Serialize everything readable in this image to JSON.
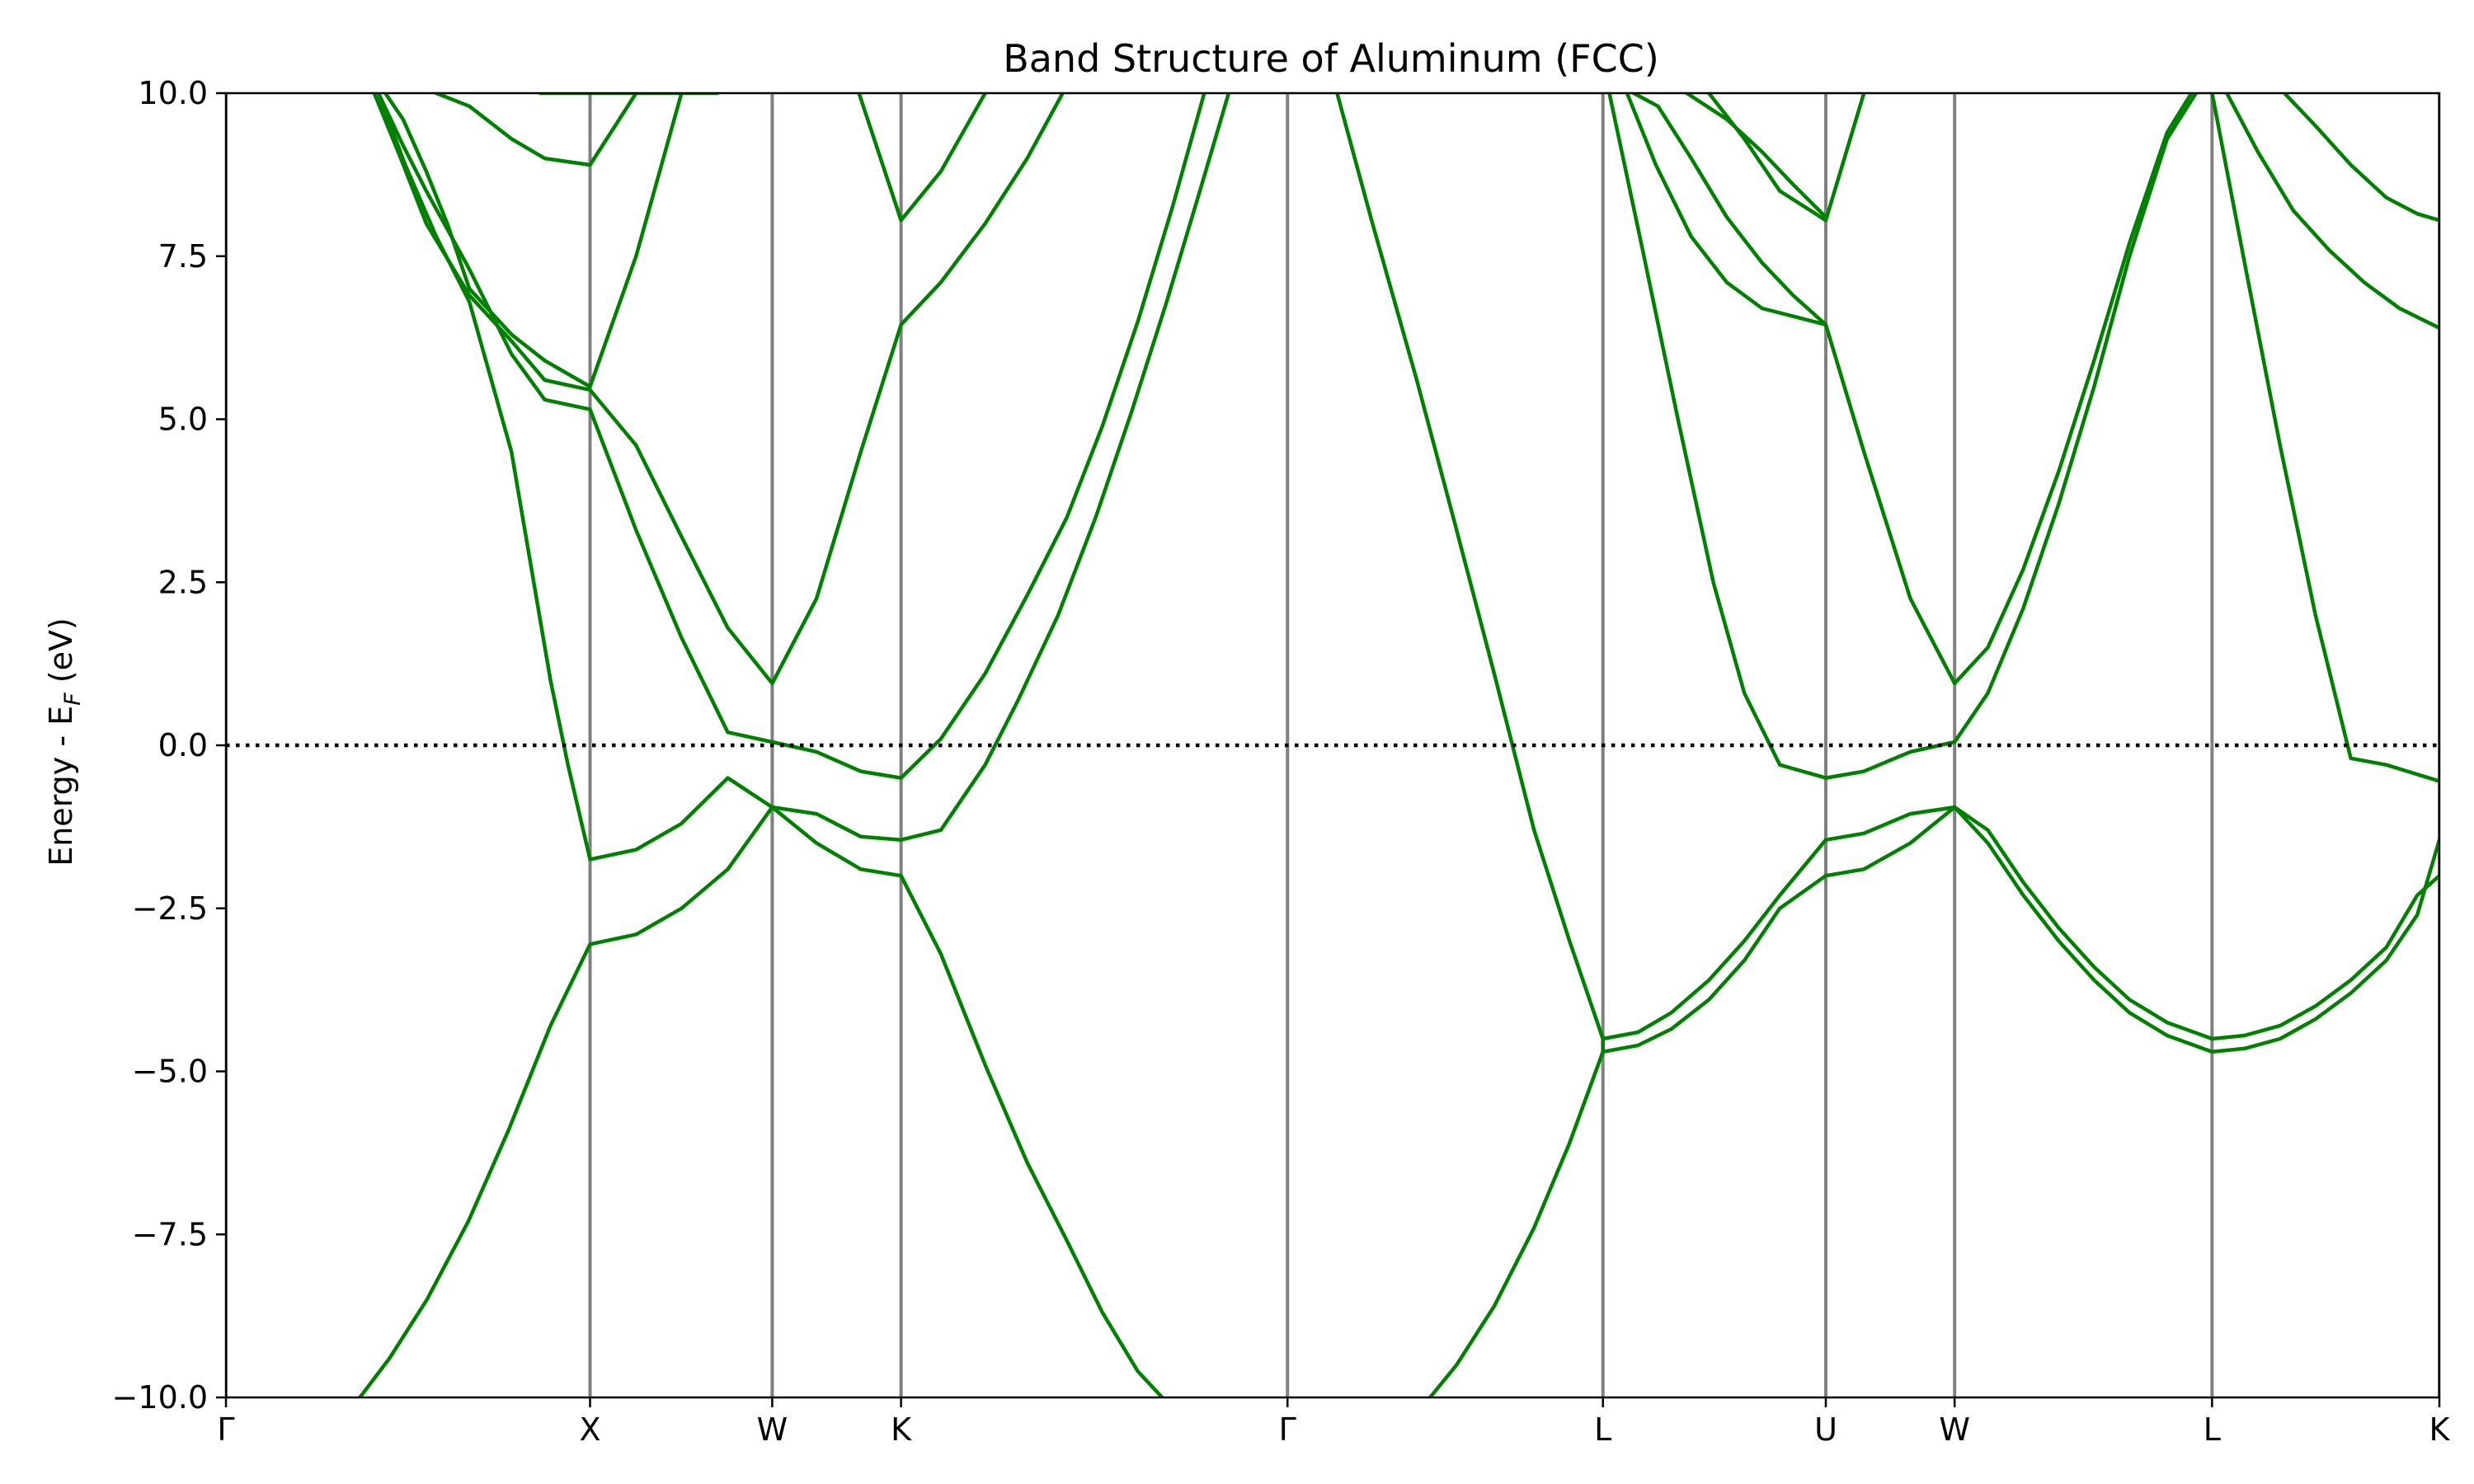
{
  "chart_data": {
    "type": "line",
    "title": "Band Structure of Aluminum (FCC)",
    "xlabel": "",
    "ylabel": "Energy - E_F (eV)",
    "ylabel_main": "Energy - E",
    "ylabel_sub": "F",
    "ylabel_tail": " (eV)",
    "ylim": [
      -10,
      10
    ],
    "xlim": [
      0,
      1
    ],
    "y_ticks": [
      -10,
      -7.5,
      -5,
      -2.5,
      0,
      2.5,
      5,
      7.5,
      10
    ],
    "y_tick_labels": [
      "−10.0",
      "−7.5",
      "−5.0",
      "−2.5",
      "0.0",
      "2.5",
      "5.0",
      "7.5",
      "10.0"
    ],
    "high_symmetry_points": [
      {
        "label": "Γ",
        "x": 0.0
      },
      {
        "label": "X",
        "x": 0.1645
      },
      {
        "label": "W",
        "x": 0.2468
      },
      {
        "label": "K",
        "x": 0.305
      },
      {
        "label": "Γ",
        "x": 0.4796
      },
      {
        "label": "L",
        "x": 0.6221
      },
      {
        "label": "U",
        "x": 0.7228
      },
      {
        "label": "W",
        "x": 0.781
      },
      {
        "label": "L",
        "x": 0.8973
      },
      {
        "label": "K",
        "x": 1.0
      }
    ],
    "fermi_level": 0.0,
    "grid": false,
    "line_color": "#008000",
    "symmetry_line_color": "#808080",
    "series": [
      {
        "points": [
          [
            0.0605,
            -10
          ],
          [
            0.0739,
            -9.4
          ],
          [
            0.0908,
            -8.5
          ],
          [
            0.1095,
            -7.3
          ],
          [
            0.1277,
            -5.9
          ],
          [
            0.1466,
            -4.3
          ],
          [
            0.1645,
            -3.05
          ],
          [
            0.1853,
            -2.9
          ],
          [
            0.2058,
            -2.5
          ],
          [
            0.2267,
            -1.9
          ],
          [
            0.2468,
            -0.95
          ],
          [
            0.2668,
            -1.05
          ],
          [
            0.2868,
            -1.4
          ],
          [
            0.305,
            -1.45
          ],
          [
            0.323,
            -1.3
          ],
          [
            0.343,
            -0.3
          ],
          [
            0.358,
            0.7
          ],
          [
            0.376,
            2.0
          ],
          [
            0.393,
            3.5
          ],
          [
            0.409,
            5.1
          ],
          [
            0.425,
            6.8
          ],
          [
            0.44,
            8.5
          ],
          [
            0.453,
            10
          ]
        ]
      },
      {
        "points": [
          [
            0.142,
            10
          ],
          [
            0.1555,
            10
          ],
          [
            0.17,
            10
          ],
          [
            0.18,
            10
          ],
          [
            0.195,
            10
          ],
          [
            0.21,
            10
          ],
          [
            0.222,
            10
          ]
        ]
      },
      {
        "points": [
          [
            0.0689,
            10
          ],
          [
            0.08,
            9.2
          ],
          [
            0.0905,
            8.5
          ],
          [
            0.11,
            7.3
          ],
          [
            0.129,
            6.0
          ],
          [
            0.144,
            5.3
          ],
          [
            0.1645,
            5.15
          ],
          [
            0.1853,
            3.3
          ],
          [
            0.2058,
            1.65
          ],
          [
            0.2267,
            0.2
          ],
          [
            0.2468,
            0.05
          ],
          [
            0.2668,
            -0.1
          ],
          [
            0.2868,
            -0.4
          ],
          [
            0.305,
            -0.5
          ],
          [
            0.323,
            0.1
          ],
          [
            0.343,
            1.1
          ],
          [
            0.362,
            2.3
          ],
          [
            0.38,
            3.5
          ],
          [
            0.396,
            4.9
          ],
          [
            0.412,
            6.5
          ],
          [
            0.428,
            8.3
          ],
          [
            0.442,
            10
          ]
        ]
      },
      {
        "points": [
          [
            0.067,
            10
          ],
          [
            0.079,
            9.0
          ],
          [
            0.0905,
            8.0
          ],
          [
            0.11,
            6.9
          ],
          [
            0.129,
            6.2
          ],
          [
            0.144,
            5.6
          ],
          [
            0.1645,
            5.45
          ],
          [
            0.1853,
            4.6
          ],
          [
            0.2058,
            3.2
          ],
          [
            0.2267,
            1.8
          ],
          [
            0.2468,
            0.95
          ],
          [
            0.2668,
            2.25
          ],
          [
            0.2868,
            4.5
          ],
          [
            0.305,
            6.45
          ],
          [
            0.323,
            7.1
          ],
          [
            0.343,
            8.0
          ],
          [
            0.362,
            9.0
          ],
          [
            0.378,
            10
          ]
        ]
      },
      {
        "points": [
          [
            0.072,
            10
          ],
          [
            0.08,
            9.6
          ],
          [
            0.0905,
            8.8
          ],
          [
            0.1,
            8.0
          ],
          [
            0.11,
            7.0
          ],
          [
            0.129,
            6.3
          ],
          [
            0.144,
            5.9
          ],
          [
            0.1645,
            5.5
          ],
          [
            0.1853,
            7.5
          ],
          [
            0.2058,
            10
          ]
        ]
      },
      {
        "points": [
          [
            0.095,
            10
          ],
          [
            0.11,
            9.8
          ],
          [
            0.129,
            9.3
          ],
          [
            0.144,
            9.0
          ],
          [
            0.1645,
            8.9
          ],
          [
            0.1853,
            10
          ]
        ]
      },
      {
        "points": [
          [
            0.0689,
            10
          ],
          [
            0.081,
            8.9
          ],
          [
            0.095,
            7.8
          ],
          [
            0.11,
            6.8
          ],
          [
            0.129,
            4.5
          ],
          [
            0.1466,
            1.0
          ],
          [
            0.1545,
            -0.3
          ],
          [
            0.1645,
            -1.75
          ],
          [
            0.1853,
            -1.6
          ],
          [
            0.2058,
            -1.2
          ],
          [
            0.2267,
            -0.5
          ],
          [
            0.2468,
            -0.95
          ],
          [
            0.2668,
            -1.5
          ],
          [
            0.2868,
            -1.9
          ],
          [
            0.305,
            -2.0
          ],
          [
            0.323,
            -3.2
          ],
          [
            0.343,
            -4.9
          ],
          [
            0.362,
            -6.4
          ],
          [
            0.38,
            -7.6
          ],
          [
            0.396,
            -8.7
          ],
          [
            0.412,
            -9.6
          ],
          [
            0.423,
            -10
          ]
        ]
      },
      {
        "points": [
          [
            0.286,
            10
          ],
          [
            0.305,
            8.05
          ],
          [
            0.323,
            8.8
          ],
          [
            0.343,
            10
          ]
        ]
      },
      {
        "points": [
          [
            0.502,
            10
          ],
          [
            0.518,
            8.0
          ],
          [
            0.538,
            5.6
          ],
          [
            0.556,
            3.3
          ],
          [
            0.573,
            1.1
          ],
          [
            0.591,
            -1.3
          ],
          [
            0.607,
            -3.0
          ],
          [
            0.6221,
            -4.5
          ],
          [
            0.6221,
            -4.7
          ],
          [
            0.607,
            -6.1
          ],
          [
            0.591,
            -7.4
          ],
          [
            0.573,
            -8.6
          ],
          [
            0.556,
            -9.5
          ],
          [
            0.544,
            -10
          ]
        ]
      },
      {
        "points": [
          [
            0.6221,
            -4.5
          ],
          [
            0.638,
            -4.4
          ],
          [
            0.653,
            -4.1
          ],
          [
            0.67,
            -3.6
          ],
          [
            0.686,
            -3.0
          ],
          [
            0.702,
            -2.3
          ],
          [
            0.7228,
            -1.45
          ],
          [
            0.74,
            -1.35
          ],
          [
            0.761,
            -1.05
          ],
          [
            0.781,
            -0.95
          ],
          [
            0.796,
            -1.3
          ],
          [
            0.812,
            -2.1
          ],
          [
            0.828,
            -2.8
          ],
          [
            0.844,
            -3.4
          ],
          [
            0.86,
            -3.9
          ],
          [
            0.877,
            -4.25
          ],
          [
            0.8973,
            -4.5
          ],
          [
            0.912,
            -4.45
          ],
          [
            0.928,
            -4.3
          ],
          [
            0.944,
            -4.0
          ],
          [
            0.96,
            -3.6
          ],
          [
            0.976,
            -3.1
          ],
          [
            0.99,
            -2.3
          ],
          [
            1.0,
            -2.0
          ]
        ]
      },
      {
        "points": [
          [
            0.6221,
            -4.7
          ],
          [
            0.638,
            -4.6
          ],
          [
            0.653,
            -4.35
          ],
          [
            0.67,
            -3.9
          ],
          [
            0.686,
            -3.3
          ],
          [
            0.702,
            -2.5
          ],
          [
            0.7228,
            -2.0
          ],
          [
            0.74,
            -1.9
          ],
          [
            0.761,
            -1.5
          ],
          [
            0.781,
            -0.95
          ],
          [
            0.796,
            -1.5
          ],
          [
            0.812,
            -2.3
          ],
          [
            0.828,
            -3.0
          ],
          [
            0.844,
            -3.6
          ],
          [
            0.86,
            -4.1
          ],
          [
            0.877,
            -4.45
          ],
          [
            0.8973,
            -4.7
          ],
          [
            0.912,
            -4.65
          ],
          [
            0.928,
            -4.5
          ],
          [
            0.944,
            -4.2
          ],
          [
            0.96,
            -3.8
          ],
          [
            0.976,
            -3.3
          ],
          [
            0.99,
            -2.6
          ],
          [
            1.0,
            -1.45
          ]
        ]
      },
      {
        "points": [
          [
            0.625,
            10
          ],
          [
            0.64,
            7.6
          ],
          [
            0.656,
            5.0
          ],
          [
            0.672,
            2.5
          ],
          [
            0.686,
            0.8
          ],
          [
            0.702,
            -0.3
          ],
          [
            0.7228,
            -0.5
          ],
          [
            0.74,
            -0.4
          ],
          [
            0.761,
            -0.1
          ],
          [
            0.781,
            0.05
          ],
          [
            0.796,
            0.8
          ],
          [
            0.812,
            2.1
          ],
          [
            0.828,
            3.7
          ],
          [
            0.844,
            5.5
          ],
          [
            0.86,
            7.5
          ],
          [
            0.877,
            9.3
          ],
          [
            0.89,
            10
          ]
        ]
      },
      {
        "points": [
          [
            0.633,
            10
          ],
          [
            0.646,
            8.9
          ],
          [
            0.662,
            7.8
          ],
          [
            0.678,
            7.1
          ],
          [
            0.694,
            6.7
          ],
          [
            0.7228,
            6.45
          ],
          [
            0.74,
            4.5
          ],
          [
            0.761,
            2.25
          ],
          [
            0.781,
            0.95
          ],
          [
            0.796,
            1.5
          ],
          [
            0.812,
            2.7
          ],
          [
            0.828,
            4.2
          ],
          [
            0.844,
            5.9
          ],
          [
            0.86,
            7.7
          ],
          [
            0.877,
            9.4
          ],
          [
            0.888,
            10
          ]
        ]
      },
      {
        "points": [
          [
            0.636,
            10
          ],
          [
            0.647,
            9.8
          ],
          [
            0.662,
            9.0
          ],
          [
            0.678,
            8.1
          ],
          [
            0.694,
            7.4
          ],
          [
            0.708,
            6.9
          ],
          [
            0.7228,
            6.45
          ]
        ]
      },
      {
        "points": [
          [
            0.67,
            10
          ],
          [
            0.686,
            9.3
          ],
          [
            0.702,
            8.5
          ],
          [
            0.7228,
            8.05
          ],
          [
            0.74,
            10
          ]
        ]
      },
      {
        "points": [
          [
            0.66,
            10
          ],
          [
            0.678,
            9.6
          ],
          [
            0.694,
            9.1
          ],
          [
            0.708,
            8.6
          ],
          [
            0.7228,
            8.1
          ]
        ]
      },
      {
        "points": [
          [
            0.8973,
            10
          ],
          [
            0.912,
            7.4
          ],
          [
            0.928,
            4.6
          ],
          [
            0.944,
            2.0
          ],
          [
            0.96,
            -0.2
          ],
          [
            0.976,
            -0.3
          ],
          [
            1.0,
            -0.55
          ]
        ]
      },
      {
        "points": [
          [
            0.904,
            10
          ],
          [
            0.918,
            9.1
          ],
          [
            0.934,
            8.2
          ],
          [
            0.95,
            7.6
          ],
          [
            0.966,
            7.1
          ],
          [
            0.982,
            6.7
          ],
          [
            1.0,
            6.4
          ]
        ]
      },
      {
        "points": [
          [
            0.93,
            10
          ],
          [
            0.944,
            9.5
          ],
          [
            0.96,
            8.9
          ],
          [
            0.976,
            8.4
          ],
          [
            0.99,
            8.15
          ],
          [
            1.0,
            8.05
          ]
        ]
      }
    ]
  }
}
